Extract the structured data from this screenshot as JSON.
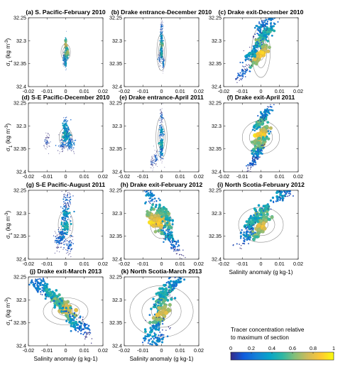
{
  "chart_data": [
    {
      "type": "scatter",
      "title": "(a) S. Pacific-February 2010",
      "ellipse": [
        0.0025,
        0.018,
        1.0
      ],
      "tilt": 0,
      "spread": 0.12,
      "sizeScale": 0.45,
      "points": [
        [
          0,
          32.31,
          0.8
        ],
        [
          0,
          32.33,
          0.6
        ],
        [
          0,
          32.35,
          0.4
        ],
        [
          0.001,
          32.325,
          0.7
        ],
        [
          -0.001,
          32.34,
          0.3
        ]
      ]
    },
    {
      "type": "scatter",
      "title": "(b) Drake entrance-December 2010",
      "ellipse": [
        0.0025,
        0.04,
        1.0
      ],
      "tilt": 0,
      "spread": 0.15,
      "sizeScale": 0.5,
      "points": [
        [
          0,
          32.27,
          0.2
        ],
        [
          0,
          32.29,
          0.4
        ],
        [
          0,
          32.31,
          0.6
        ],
        [
          0,
          32.33,
          0.5
        ],
        [
          0.001,
          32.35,
          0.3
        ],
        [
          -0.001,
          32.34,
          0.2
        ]
      ]
    },
    {
      "type": "scatter",
      "title": "(c) Drake exit-December 2010",
      "ellipse": [
        0.005,
        0.055,
        1.0
      ],
      "tilt": 1,
      "spread": 0.55,
      "sizeScale": 1.0,
      "points": [
        [
          0,
          32.27,
          0.3
        ],
        [
          0,
          32.3,
          0.6
        ],
        [
          0,
          32.33,
          0.9
        ],
        [
          -0.005,
          32.33,
          0.4
        ],
        [
          0.004,
          32.28,
          0.5
        ],
        [
          -0.01,
          32.37,
          0.2
        ],
        [
          0.005,
          32.25,
          0.3
        ]
      ]
    },
    {
      "type": "scatter",
      "title": "(d) S-E Pacific-December 2010",
      "ellipse": [
        0.0035,
        0.02,
        1.0
      ],
      "tilt": 0,
      "spread": 0.35,
      "sizeScale": 0.7,
      "points": [
        [
          0,
          32.3,
          0.4
        ],
        [
          0,
          32.32,
          0.5
        ],
        [
          0.001,
          32.33,
          0.4
        ],
        [
          -0.002,
          32.34,
          0.2
        ],
        [
          -0.01,
          32.335,
          0.1
        ],
        [
          0.003,
          32.34,
          0.3
        ]
      ]
    },
    {
      "type": "scatter",
      "title": "(e) Drake entrance-April 2011",
      "ellipse": [
        0.003,
        0.045,
        1.0
      ],
      "tilt": 0,
      "spread": 0.2,
      "sizeScale": 0.6,
      "points": [
        [
          0,
          32.28,
          0.2
        ],
        [
          0,
          32.31,
          0.4
        ],
        [
          0,
          32.34,
          0.5
        ],
        [
          0,
          32.36,
          0.3
        ],
        [
          -0.003,
          32.37,
          0.2
        ],
        [
          -0.005,
          32.38,
          0.1
        ]
      ]
    },
    {
      "type": "scatter",
      "title": "(f) Drake exit-April 2011",
      "ellipse": [
        0.01,
        0.045,
        0.8
      ],
      "tilt": 1,
      "spread": 0.45,
      "sizeScale": 1.0,
      "points": [
        [
          0,
          32.29,
          0.6
        ],
        [
          0,
          32.32,
          0.9
        ],
        [
          0,
          32.34,
          0.7
        ],
        [
          -0.002,
          32.36,
          0.3
        ],
        [
          0.003,
          32.27,
          0.3
        ],
        [
          -0.004,
          32.38,
          0.2
        ]
      ]
    },
    {
      "type": "scatter",
      "title": "(g) S-E Pacific-August 2011",
      "ellipse": [
        0.004,
        0.03,
        1.0
      ],
      "tilt": 0,
      "spread": 0.45,
      "sizeScale": 0.85,
      "points": [
        [
          0,
          32.3,
          0.4
        ],
        [
          0,
          32.33,
          0.5
        ],
        [
          -0.002,
          32.35,
          0.3
        ],
        [
          0.001,
          32.27,
          0.2
        ],
        [
          -0.004,
          32.36,
          0.2
        ],
        [
          0.002,
          32.37,
          0.2
        ]
      ]
    },
    {
      "type": "scatter",
      "title": "(h) Drake exit-February 2012",
      "ellipse": [
        0.006,
        0.03,
        1.0
      ],
      "tilt": -1,
      "spread": 0.6,
      "sizeScale": 1.0,
      "points": [
        [
          0,
          32.31,
          0.8
        ],
        [
          -0.003,
          32.32,
          0.9
        ],
        [
          0.002,
          32.3,
          0.6
        ],
        [
          0.004,
          32.35,
          0.4
        ],
        [
          -0.006,
          32.26,
          0.3
        ],
        [
          0.007,
          32.37,
          0.2
        ]
      ]
    },
    {
      "type": "scatter",
      "title": "(i) North Scotia-February 2012",
      "ellipse": [
        0.012,
        0.045,
        0.85
      ],
      "tilt": 1,
      "spread": 0.7,
      "sizeScale": 1.1,
      "points": [
        [
          0,
          32.3,
          0.6
        ],
        [
          0,
          32.33,
          0.8
        ],
        [
          -0.005,
          32.32,
          0.5
        ],
        [
          0.01,
          32.26,
          0.4
        ],
        [
          -0.008,
          32.35,
          0.3
        ],
        [
          0.015,
          32.25,
          0.2
        ]
      ]
    },
    {
      "type": "scatter",
      "title": "(j) Drake exit-March 2013",
      "ellipse": [
        0.012,
        0.035,
        0.85
      ],
      "tilt": -1,
      "spread": 0.7,
      "sizeScale": 1.1,
      "points": [
        [
          0,
          32.32,
          0.8
        ],
        [
          -0.005,
          32.3,
          0.6
        ],
        [
          -0.01,
          32.28,
          0.5
        ],
        [
          0.005,
          32.35,
          0.4
        ],
        [
          -0.015,
          32.27,
          0.3
        ],
        [
          0.01,
          32.36,
          0.2
        ]
      ]
    },
    {
      "type": "scatter",
      "title": "(k) North Scotia-March 2013",
      "ellipse": [
        0.017,
        0.07,
        0.8
      ],
      "tilt": 1,
      "spread": 0.75,
      "sizeScale": 1.1,
      "points": [
        [
          0,
          32.3,
          0.6
        ],
        [
          0,
          32.33,
          0.8
        ],
        [
          0.002,
          32.28,
          0.5
        ],
        [
          -0.005,
          32.37,
          0.4
        ],
        [
          0.008,
          32.26,
          0.3
        ],
        [
          -0.002,
          32.39,
          0.3
        ]
      ]
    }
  ],
  "axes": {
    "xlim": [
      -0.02,
      0.02
    ],
    "ylim": [
      32.25,
      32.4
    ],
    "xticks": [
      "-0.02",
      "-0.01",
      "0",
      "0.01",
      "0.02"
    ],
    "yticks": [
      "32.25",
      "32.3",
      "32.35",
      "32.4"
    ],
    "ylabel": "σ",
    "ylabel_sub": "1",
    "ylabel_units": " (kg m",
    "ylabel_exp": "-3",
    "ylabel_close": ")",
    "xlabel": "Salinity anomaly (g kg-1)"
  },
  "colorbar": {
    "title_line1": "Tracer concentration relative",
    "title_line2": "to maximum of section",
    "ticks": [
      "0",
      "0.2",
      "0.4",
      "0.6",
      "0.8",
      "1"
    ],
    "colors": [
      "#352a87",
      "#0f5cdd",
      "#1481d6",
      "#06a4ca",
      "#2eb7a4",
      "#87bf77",
      "#d1bb59",
      "#fec832",
      "#f9fb0e"
    ]
  }
}
